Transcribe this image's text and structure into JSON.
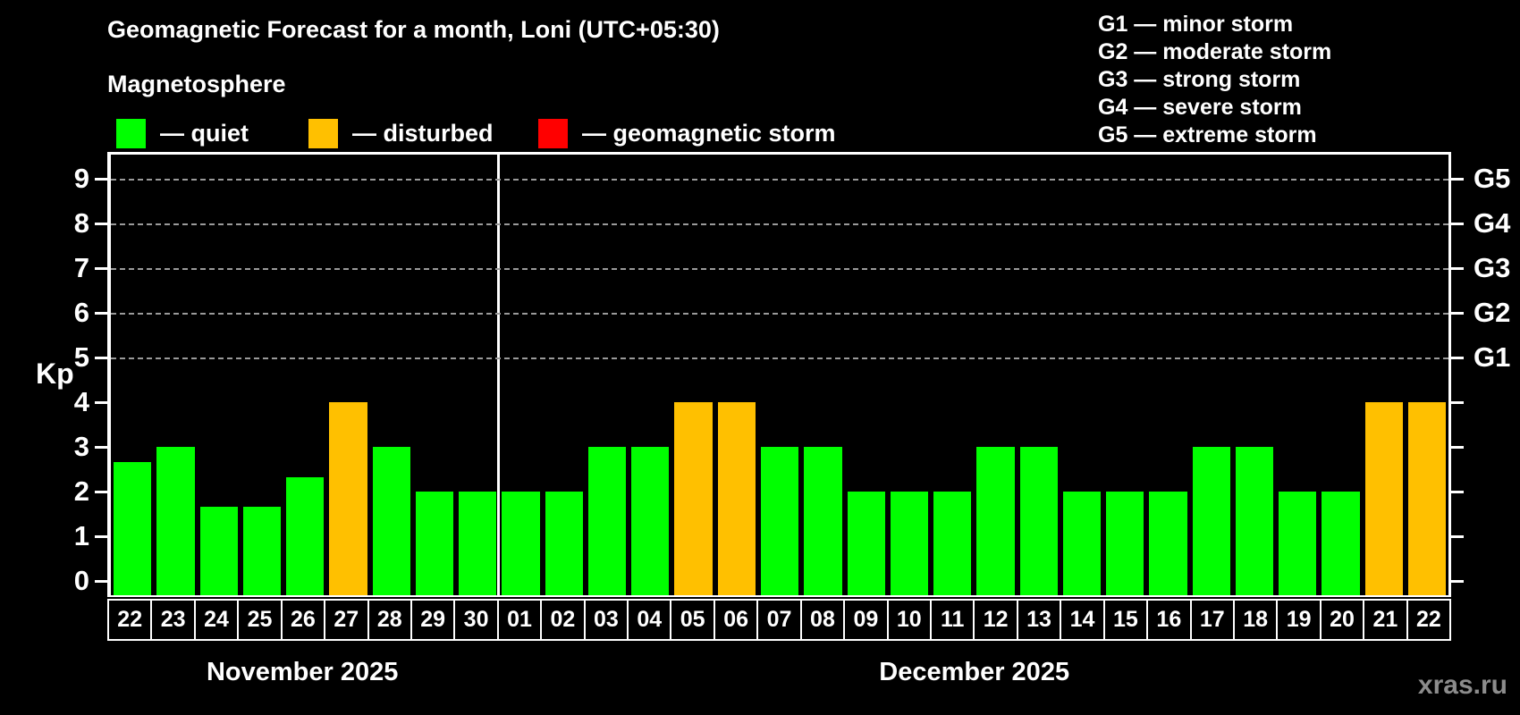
{
  "title": "Geomagnetic Forecast for a month, Loni (UTC+05:30)",
  "subtitle": "Magnetosphere",
  "legend": {
    "items": [
      {
        "name": "quiet",
        "label": "— quiet",
        "color": "#00ff00"
      },
      {
        "name": "disturbed",
        "label": "— disturbed",
        "color": "#ffc000"
      },
      {
        "name": "storm",
        "label": "— geomagnetic storm",
        "color": "#ff0000"
      }
    ]
  },
  "storm_scale_legend": {
    "items": [
      "G1 — minor storm",
      "G2 — moderate storm",
      "G3 — strong storm",
      "G4 — severe storm",
      "G5 — extreme storm"
    ]
  },
  "watermark": "xras.ru",
  "colors": {
    "background": "#000000",
    "quiet": "#00ff00",
    "disturbed": "#ffc000",
    "storm": "#ff0000",
    "grid": "#9a9a9a",
    "axis": "#ffffff",
    "watermark_text": "#8c8c8c"
  },
  "chart_data": {
    "type": "bar",
    "title": "Geomagnetic Forecast for a month, Loni (UTC+05:30)",
    "ylabel": "Kp",
    "ylim": [
      0,
      9.6
    ],
    "yticks": [
      0,
      1,
      2,
      3,
      4,
      5,
      6,
      7,
      8,
      9
    ],
    "dashed_gridlines_at_kp": [
      5,
      6,
      7,
      8,
      9
    ],
    "grid": true,
    "right_axis": [
      {
        "label": "G1",
        "kp": 5
      },
      {
        "label": "G2",
        "kp": 6
      },
      {
        "label": "G3",
        "kp": 7
      },
      {
        "label": "G4",
        "kp": 8
      },
      {
        "label": "G5",
        "kp": 9
      }
    ],
    "months": [
      {
        "label": "November 2025",
        "days": [
          {
            "date": "22",
            "kp": 2.67,
            "status": "quiet"
          },
          {
            "date": "23",
            "kp": 3,
            "status": "quiet"
          },
          {
            "date": "24",
            "kp": 1.67,
            "status": "quiet"
          },
          {
            "date": "25",
            "kp": 1.67,
            "status": "quiet"
          },
          {
            "date": "26",
            "kp": 2.33,
            "status": "quiet"
          },
          {
            "date": "27",
            "kp": 4,
            "status": "disturbed"
          },
          {
            "date": "28",
            "kp": 3,
            "status": "quiet"
          },
          {
            "date": "29",
            "kp": 2,
            "status": "quiet"
          },
          {
            "date": "30",
            "kp": 2,
            "status": "quiet"
          }
        ]
      },
      {
        "label": "December 2025",
        "days": [
          {
            "date": "01",
            "kp": 2,
            "status": "quiet"
          },
          {
            "date": "02",
            "kp": 2,
            "status": "quiet"
          },
          {
            "date": "03",
            "kp": 3,
            "status": "quiet"
          },
          {
            "date": "04",
            "kp": 3,
            "status": "quiet"
          },
          {
            "date": "05",
            "kp": 4,
            "status": "disturbed"
          },
          {
            "date": "06",
            "kp": 4,
            "status": "disturbed"
          },
          {
            "date": "07",
            "kp": 3,
            "status": "quiet"
          },
          {
            "date": "08",
            "kp": 3,
            "status": "quiet"
          },
          {
            "date": "09",
            "kp": 2,
            "status": "quiet"
          },
          {
            "date": "10",
            "kp": 2,
            "status": "quiet"
          },
          {
            "date": "11",
            "kp": 2,
            "status": "quiet"
          },
          {
            "date": "12",
            "kp": 3,
            "status": "quiet"
          },
          {
            "date": "13",
            "kp": 3,
            "status": "quiet"
          },
          {
            "date": "14",
            "kp": 2,
            "status": "quiet"
          },
          {
            "date": "15",
            "kp": 2,
            "status": "quiet"
          },
          {
            "date": "16",
            "kp": 2,
            "status": "quiet"
          },
          {
            "date": "17",
            "kp": 3,
            "status": "quiet"
          },
          {
            "date": "18",
            "kp": 3,
            "status": "quiet"
          },
          {
            "date": "19",
            "kp": 2,
            "status": "quiet"
          },
          {
            "date": "20",
            "kp": 2,
            "status": "quiet"
          },
          {
            "date": "21",
            "kp": 4,
            "status": "disturbed"
          },
          {
            "date": "22",
            "kp": 4,
            "status": "disturbed"
          }
        ]
      }
    ]
  }
}
